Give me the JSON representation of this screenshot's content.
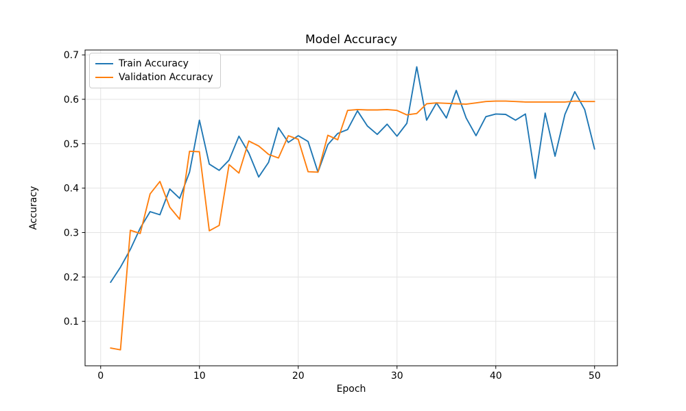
{
  "chart_data": {
    "type": "line",
    "title": "Model Accuracy",
    "xlabel": "Epoch",
    "ylabel": "Accuracy",
    "x": [
      1,
      2,
      3,
      4,
      5,
      6,
      7,
      8,
      9,
      10,
      11,
      12,
      13,
      14,
      15,
      16,
      17,
      18,
      19,
      20,
      21,
      22,
      23,
      24,
      25,
      26,
      27,
      28,
      29,
      30,
      31,
      32,
      33,
      34,
      35,
      36,
      37,
      38,
      39,
      40,
      41,
      42,
      43,
      44,
      45,
      46,
      47,
      48,
      49,
      50
    ],
    "series": [
      {
        "name": "Train Accuracy",
        "color": "#1f77b4",
        "values": [
          0.188,
          0.222,
          0.262,
          0.31,
          0.347,
          0.34,
          0.398,
          0.377,
          0.436,
          0.553,
          0.454,
          0.44,
          0.463,
          0.517,
          0.479,
          0.425,
          0.458,
          0.536,
          0.503,
          0.518,
          0.505,
          0.436,
          0.498,
          0.523,
          0.532,
          0.574,
          0.54,
          0.521,
          0.544,
          0.517,
          0.546,
          0.673,
          0.553,
          0.592,
          0.558,
          0.62,
          0.558,
          0.518,
          0.561,
          0.567,
          0.566,
          0.553,
          0.567,
          0.422,
          0.569,
          0.472,
          0.566,
          0.617,
          0.577,
          0.488
        ]
      },
      {
        "name": "Validation Accuracy",
        "color": "#ff7f0e",
        "values": [
          0.04,
          0.036,
          0.305,
          0.298,
          0.387,
          0.415,
          0.357,
          0.33,
          0.483,
          0.482,
          0.304,
          0.316,
          0.453,
          0.434,
          0.506,
          0.495,
          0.476,
          0.468,
          0.518,
          0.51,
          0.437,
          0.436,
          0.519,
          0.509,
          0.575,
          0.577,
          0.576,
          0.576,
          0.577,
          0.575,
          0.565,
          0.568,
          0.59,
          0.592,
          0.591,
          0.59,
          0.589,
          0.592,
          0.595,
          0.596,
          0.596,
          0.595,
          0.594,
          0.594,
          0.594,
          0.594,
          0.594,
          0.596,
          0.595,
          0.595
        ]
      }
    ],
    "xlim": [
      -1.58,
      52.31
    ],
    "ylim": [
      0.0,
      0.711
    ],
    "xticks": [
      0,
      10,
      20,
      30,
      40,
      50
    ],
    "yticks": [
      0.1,
      0.2,
      0.3,
      0.4,
      0.5,
      0.6,
      0.7
    ],
    "grid": true,
    "legend_position": "upper left"
  },
  "colors": {
    "train": "#1f77b4",
    "validation": "#ff7f0e",
    "grid": "#e3e3e3",
    "spine": "#000000",
    "background": "#ffffff",
    "legend_border": "#cccccc"
  }
}
